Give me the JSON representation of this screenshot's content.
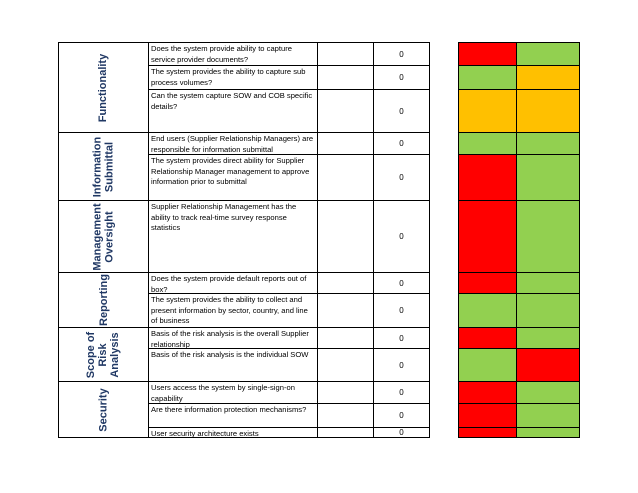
{
  "sections": [
    {
      "category": "Functionality",
      "rows": [
        {
          "question": "Does the system provide ability to capture service provider documents?",
          "score": "0",
          "status": [
            "red",
            "green"
          ]
        },
        {
          "question": "The system provides the ability to capture sub process volumes?",
          "score": "0",
          "status": [
            "green",
            "orange"
          ]
        },
        {
          "question": "Can the system capture SOW and COB specific details?",
          "score": "0",
          "status": [
            "orange",
            "orange"
          ]
        }
      ]
    },
    {
      "category": "Information\nSubmittal",
      "rows": [
        {
          "question": "End users (Supplier Relationship Managers) are responsible for information submittal",
          "score": "0",
          "status": [
            "green",
            "green"
          ]
        },
        {
          "question": "The system provides direct ability for Supplier Relationship Manager management to approve information prior to submittal",
          "score": "0",
          "status": [
            "red",
            "green"
          ]
        }
      ]
    },
    {
      "category": "Management\nOversight",
      "rows": [
        {
          "question": "Supplier Relationship Management has the ability to track real-time survey response statistics",
          "score": "0",
          "status": [
            "red",
            "green"
          ]
        }
      ]
    },
    {
      "category": "Reporting",
      "rows": [
        {
          "question": "Does the system provide default reports out of box?",
          "score": "0",
          "status": [
            "red",
            "green"
          ]
        },
        {
          "question": "The system provides the ability to collect and present information by sector, country, and line of business",
          "score": "0",
          "status": [
            "green",
            "green"
          ]
        }
      ]
    },
    {
      "category": "Scope of\nRisk\nAnalysis",
      "rows": [
        {
          "question": "Basis of the risk analysis is the overall Supplier relationship",
          "score": "0",
          "status": [
            "red",
            "green"
          ]
        },
        {
          "question": "Basis of the risk analysis is the individual SOW",
          "score": "0",
          "status": [
            "green",
            "red"
          ]
        }
      ]
    },
    {
      "category": "Security",
      "rows": [
        {
          "question": "Users access the system by single-sign-on capability",
          "score": "0",
          "status": [
            "red",
            "green"
          ]
        },
        {
          "question": "Are there information protection mechanisms?",
          "score": "0",
          "status": [
            "red",
            "green"
          ]
        },
        {
          "question": "User security architecture exists",
          "score": "0",
          "status": [
            "red",
            "green"
          ]
        }
      ]
    }
  ],
  "colors": {
    "red": "#ff0000",
    "green": "#92d050",
    "orange": "#ffc000"
  }
}
